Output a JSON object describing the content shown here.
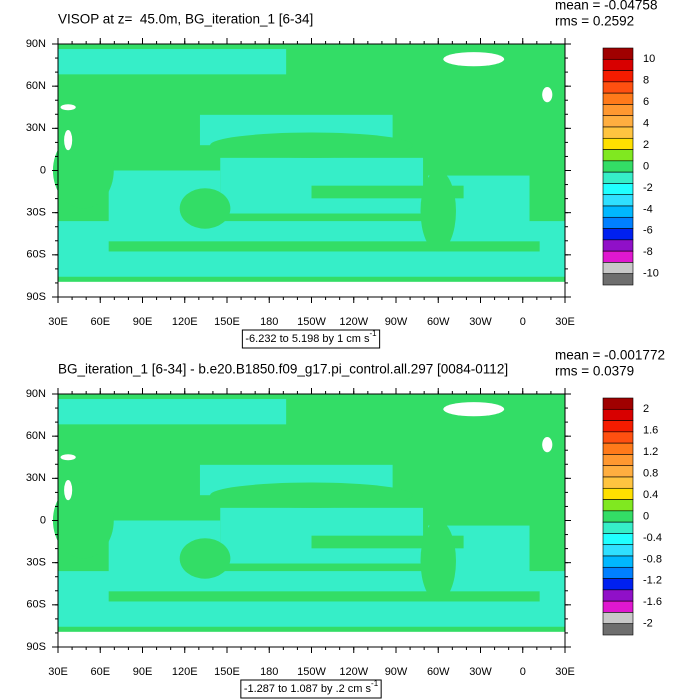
{
  "lat_labels": [
    "90N",
    "60N",
    "30N",
    "0",
    "30S",
    "60S",
    "90S"
  ],
  "lon_labels": [
    "30E",
    "60E",
    "90E",
    "120E",
    "150E",
    "180",
    "150W",
    "120W",
    "90W",
    "60W",
    "30W",
    "0",
    "30E"
  ],
  "panels": [
    {
      "title": "VISOP at z=  45.0m, BG_iteration_1 [6-34]",
      "mean": "mean = -0.04758",
      "rms": "rms = 0.2592",
      "contour_info": "-6.232 to 5.198 by 1 cm s",
      "contour_info_exp": "-1",
      "colorbar": {
        "colors": [
          "#a00000",
          "#d80000",
          "#f51c00",
          "#ff5010",
          "#ff7a1a",
          "#ff9830",
          "#ffae40",
          "#ffc440",
          "#ffe000",
          "#80e820",
          "#33dd66",
          "#36eec8",
          "#20ffff",
          "#30e0ff",
          "#00b8ff",
          "#0080ff",
          "#0020f0",
          "#9010c8",
          "#e018d0",
          "#c8c8c8",
          "#6e6e6e"
        ],
        "labels": [
          10,
          8,
          6,
          4,
          2,
          0,
          -2,
          -4,
          -6,
          -8,
          -10
        ]
      }
    },
    {
      "title": "BG_iteration_1 [6-34] - b.e20.B1850.f09_g17.pi_control.all.297 [0084-0112]",
      "mean": "mean = -0.001772",
      "rms": "rms = 0.0379",
      "contour_info": "-1.287 to 1.087 by .2 cm s",
      "contour_info_exp": "-1",
      "colorbar": {
        "colors": [
          "#a00000",
          "#d80000",
          "#f51c00",
          "#ff5010",
          "#ff7a1a",
          "#ff9830",
          "#ffae40",
          "#ffc440",
          "#ffe000",
          "#80e820",
          "#33dd66",
          "#36eec8",
          "#20ffff",
          "#30e0ff",
          "#00b8ff",
          "#0080ff",
          "#0020f0",
          "#9010c8",
          "#e018d0",
          "#c8c8c8",
          "#6e6e6e"
        ],
        "labels": [
          2,
          1.6,
          1.2,
          0.8,
          0.4,
          0,
          -0.4,
          -0.8,
          -1.2,
          -1.6,
          -2
        ]
      }
    }
  ]
}
